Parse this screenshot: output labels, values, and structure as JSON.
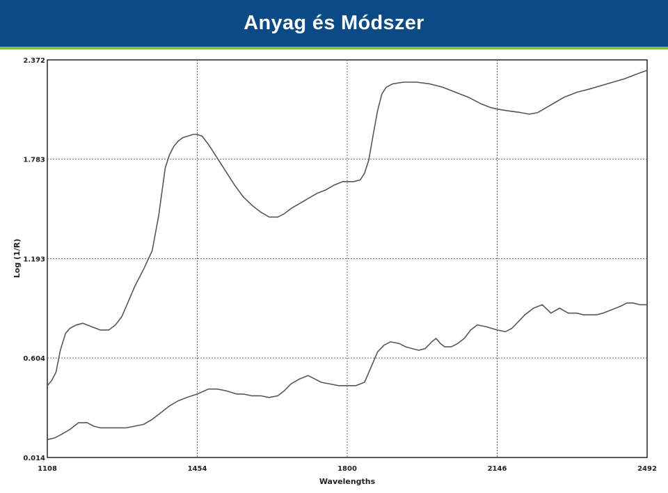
{
  "header": {
    "title": "Anyag és Módszer"
  },
  "colors": {
    "header_bg": "#0b4a85",
    "accent_rule": "#7cc142",
    "curve": "#555555",
    "grid": "#666666"
  },
  "chart_data": {
    "type": "line",
    "title": "",
    "xlabel": "Wavelengths",
    "ylabel": "Log (1/R)",
    "xlim": [
      1108,
      2492
    ],
    "ylim": [
      0.014,
      2.372
    ],
    "x_ticks": [
      "1108",
      "1454",
      "1800",
      "2146",
      "2492"
    ],
    "y_ticks": [
      "2.372",
      "1.783",
      "1.193",
      "0.604",
      "0.014"
    ],
    "grid": true,
    "series": [
      {
        "x": [
          1108,
          1118,
          1128,
          1138,
          1150,
          1160,
          1175,
          1190,
          1210,
          1230,
          1250,
          1265,
          1280,
          1295,
          1310,
          1330,
          1350,
          1365,
          1380,
          1390,
          1400,
          1410,
          1420,
          1432,
          1445,
          1454,
          1465,
          1480,
          1500,
          1520,
          1540,
          1560,
          1580,
          1600,
          1620,
          1640,
          1655,
          1670,
          1690,
          1710,
          1730,
          1750,
          1770,
          1790,
          1800,
          1815,
          1830,
          1840,
          1850,
          1860,
          1870,
          1880,
          1890,
          1905,
          1930,
          1960,
          1990,
          2020,
          2050,
          2080,
          2110,
          2130,
          2146,
          2170,
          2200,
          2220,
          2240,
          2260,
          2280,
          2300,
          2330,
          2360,
          2400,
          2440,
          2470,
          2492
        ],
        "y": [
          0.44,
          0.47,
          0.52,
          0.65,
          0.75,
          0.78,
          0.8,
          0.81,
          0.79,
          0.77,
          0.77,
          0.8,
          0.85,
          0.94,
          1.03,
          1.13,
          1.24,
          1.45,
          1.73,
          1.81,
          1.86,
          1.89,
          1.91,
          1.92,
          1.93,
          1.93,
          1.92,
          1.87,
          1.79,
          1.71,
          1.63,
          1.56,
          1.51,
          1.47,
          1.44,
          1.44,
          1.46,
          1.49,
          1.52,
          1.55,
          1.58,
          1.6,
          1.63,
          1.65,
          1.65,
          1.65,
          1.66,
          1.7,
          1.78,
          1.93,
          2.07,
          2.17,
          2.21,
          2.23,
          2.24,
          2.24,
          2.23,
          2.21,
          2.18,
          2.15,
          2.11,
          2.09,
          2.08,
          2.07,
          2.06,
          2.05,
          2.06,
          2.09,
          2.12,
          2.15,
          2.18,
          2.2,
          2.23,
          2.26,
          2.29,
          2.31
        ]
      },
      {
        "x": [
          1108,
          1125,
          1140,
          1160,
          1180,
          1200,
          1215,
          1230,
          1250,
          1270,
          1290,
          1310,
          1330,
          1350,
          1370,
          1390,
          1410,
          1430,
          1454,
          1480,
          1500,
          1520,
          1545,
          1560,
          1580,
          1600,
          1620,
          1640,
          1655,
          1670,
          1690,
          1710,
          1725,
          1740,
          1760,
          1780,
          1800,
          1820,
          1840,
          1855,
          1870,
          1885,
          1900,
          1920,
          1935,
          1950,
          1965,
          1980,
          1995,
          2005,
          2015,
          2025,
          2040,
          2055,
          2070,
          2085,
          2100,
          2120,
          2146,
          2165,
          2180,
          2195,
          2210,
          2230,
          2250,
          2270,
          2290,
          2310,
          2330,
          2345,
          2360,
          2375,
          2390,
          2410,
          2430,
          2445,
          2460,
          2475,
          2492
        ],
        "y": [
          0.12,
          0.13,
          0.15,
          0.18,
          0.22,
          0.22,
          0.2,
          0.19,
          0.19,
          0.19,
          0.19,
          0.2,
          0.21,
          0.24,
          0.28,
          0.32,
          0.35,
          0.37,
          0.39,
          0.42,
          0.42,
          0.41,
          0.39,
          0.39,
          0.38,
          0.38,
          0.37,
          0.38,
          0.41,
          0.45,
          0.48,
          0.5,
          0.48,
          0.46,
          0.45,
          0.44,
          0.44,
          0.44,
          0.46,
          0.55,
          0.64,
          0.68,
          0.7,
          0.69,
          0.67,
          0.66,
          0.65,
          0.66,
          0.7,
          0.72,
          0.69,
          0.67,
          0.67,
          0.69,
          0.72,
          0.77,
          0.8,
          0.79,
          0.77,
          0.76,
          0.78,
          0.82,
          0.86,
          0.9,
          0.92,
          0.87,
          0.9,
          0.87,
          0.87,
          0.86,
          0.86,
          0.86,
          0.87,
          0.89,
          0.91,
          0.93,
          0.93,
          0.92,
          0.92
        ]
      }
    ]
  }
}
